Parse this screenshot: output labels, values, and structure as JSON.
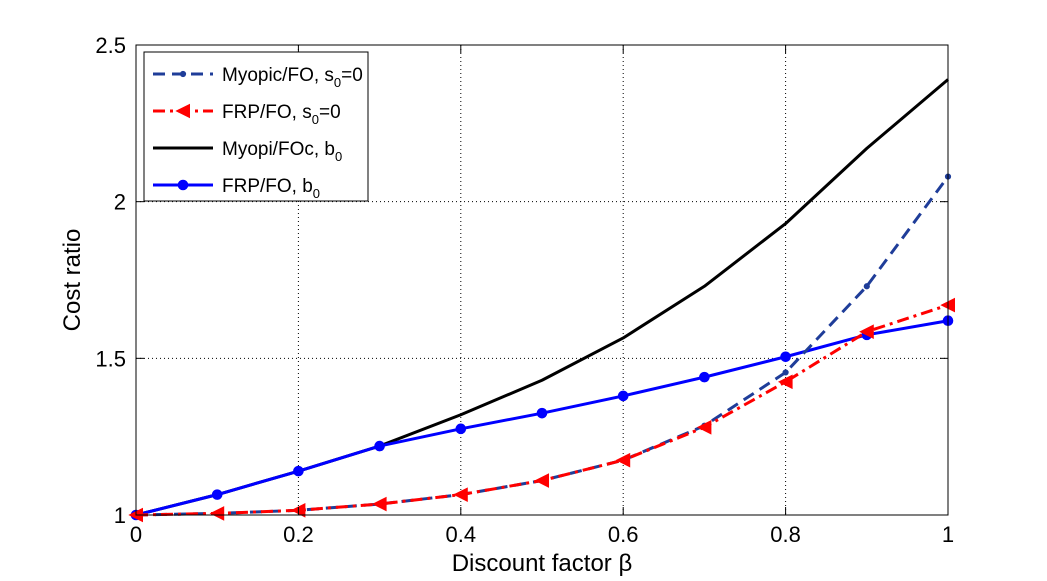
{
  "chart_data": {
    "type": "line",
    "title": "",
    "xlabel": "Discount factor β",
    "ylabel": "Cost ratio",
    "xlim": [
      0,
      1
    ],
    "ylim": [
      1,
      2.5
    ],
    "xticks": [
      0,
      0.2,
      0.4,
      0.6,
      0.8,
      1
    ],
    "xtick_labels": [
      "0",
      "0.2",
      "0.4",
      "0.6",
      "0.8",
      "1"
    ],
    "yticks": [
      1,
      1.5,
      2,
      2.5
    ],
    "ytick_labels": [
      "1",
      "1.5",
      "2",
      "2.5"
    ],
    "grid": true,
    "legend_position": "top-left",
    "x": [
      0,
      0.1,
      0.2,
      0.3,
      0.4,
      0.5,
      0.6,
      0.7,
      0.8,
      0.9,
      1.0
    ],
    "series": [
      {
        "name": "Myopic/FO, s0=0",
        "legend_main": "Myopic/FO, s",
        "legend_sub": "0",
        "legend_tail": "=0",
        "color": "#1f3d99",
        "style": "dashed",
        "marker": "dot",
        "values": [
          1.0,
          1.005,
          1.015,
          1.035,
          1.065,
          1.11,
          1.175,
          1.285,
          1.455,
          1.73,
          2.08
        ]
      },
      {
        "name": "FRP/FO, s0=0",
        "legend_main": "FRP/FO, s",
        "legend_sub": "0",
        "legend_tail": "=0",
        "color": "#ff0000",
        "style": "dashdot",
        "marker": "triangle-left",
        "values": [
          1.0,
          1.005,
          1.015,
          1.035,
          1.065,
          1.11,
          1.175,
          1.28,
          1.425,
          1.585,
          1.67
        ]
      },
      {
        "name": "Myopi/FOc, b0",
        "legend_main": "Myopi/FOc, b",
        "legend_sub": "0",
        "legend_tail": "",
        "color": "#000000",
        "style": "solid",
        "marker": "none",
        "values": [
          1.0,
          1.065,
          1.14,
          1.22,
          1.32,
          1.43,
          1.565,
          1.73,
          1.93,
          2.17,
          2.39
        ]
      },
      {
        "name": "FRP/FO, b0",
        "legend_main": "FRP/FO, b",
        "legend_sub": "0",
        "legend_tail": "",
        "color": "#0000ff",
        "style": "solid",
        "marker": "circle",
        "values": [
          1.0,
          1.065,
          1.14,
          1.22,
          1.275,
          1.325,
          1.38,
          1.44,
          1.505,
          1.575,
          1.62
        ]
      }
    ]
  }
}
